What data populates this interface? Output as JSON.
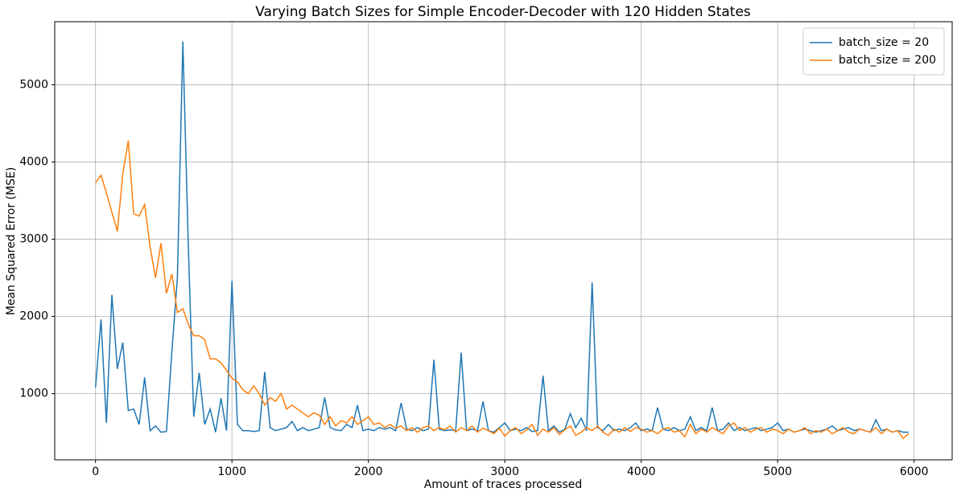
{
  "chart_data": {
    "type": "line",
    "title": "Varying Batch Sizes for Simple Encoder-Decoder with 120 Hidden States",
    "x_label": "Amount of traces processed",
    "y_label": "Mean Squared Error (MSE)",
    "x": [
      0,
      40,
      80,
      120,
      160,
      200,
      240,
      280,
      320,
      360,
      400,
      440,
      480,
      520,
      560,
      600,
      640,
      680,
      720,
      760,
      800,
      840,
      880,
      920,
      960,
      1000,
      1040,
      1080,
      1120,
      1160,
      1200,
      1240,
      1280,
      1320,
      1360,
      1400,
      1440,
      1480,
      1520,
      1560,
      1600,
      1640,
      1680,
      1720,
      1760,
      1800,
      1840,
      1880,
      1920,
      1960,
      2000,
      2040,
      2080,
      2120,
      2160,
      2200,
      2240,
      2280,
      2320,
      2360,
      2400,
      2440,
      2480,
      2520,
      2560,
      2600,
      2640,
      2680,
      2720,
      2760,
      2800,
      2840,
      2880,
      2920,
      2960,
      3000,
      3040,
      3080,
      3120,
      3160,
      3200,
      3240,
      3280,
      3320,
      3360,
      3400,
      3440,
      3480,
      3520,
      3560,
      3600,
      3640,
      3680,
      3720,
      3760,
      3800,
      3840,
      3880,
      3920,
      3960,
      4000,
      4040,
      4080,
      4120,
      4160,
      4200,
      4240,
      4280,
      4320,
      4360,
      4400,
      4440,
      4480,
      4520,
      4560,
      4600,
      4640,
      4680,
      4720,
      4760,
      4800,
      4840,
      4880,
      4920,
      4960,
      5000,
      5040,
      5080,
      5120,
      5160,
      5200,
      5240,
      5280,
      5320,
      5360,
      5400,
      5440,
      5480,
      5520,
      5560,
      5600,
      5640,
      5680,
      5720,
      5760,
      5800,
      5840,
      5880,
      5920,
      5960
    ],
    "series": [
      {
        "name": "batch_size = 20",
        "color": "#1f77b4",
        "values": [
          1080,
          1960,
          620,
          2280,
          1320,
          1660,
          780,
          800,
          600,
          1210,
          520,
          580,
          500,
          510,
          1550,
          2500,
          5560,
          2940,
          700,
          1270,
          600,
          800,
          500,
          940,
          520,
          2460,
          600,
          520,
          520,
          510,
          520,
          1280,
          560,
          520,
          540,
          560,
          640,
          520,
          560,
          520,
          540,
          560,
          950,
          560,
          530,
          520,
          600,
          560,
          850,
          520,
          540,
          520,
          560,
          540,
          560,
          520,
          880,
          540,
          520,
          560,
          520,
          540,
          1440,
          540,
          520,
          530,
          520,
          1530,
          520,
          540,
          520,
          900,
          520,
          500,
          560,
          620,
          520,
          540,
          520,
          560,
          510,
          520,
          1230,
          520,
          580,
          500,
          540,
          740,
          560,
          680,
          520,
          2440,
          560,
          520,
          600,
          520,
          540,
          520,
          560,
          620,
          520,
          540,
          520,
          820,
          540,
          520,
          560,
          520,
          540,
          700,
          520,
          560,
          520,
          820,
          520,
          540,
          620,
          520,
          560,
          520,
          540,
          560,
          520,
          540,
          560,
          620,
          520,
          540,
          500,
          520,
          540,
          520,
          500,
          520,
          540,
          580,
          520,
          540,
          560,
          520,
          540,
          520,
          500,
          660,
          520,
          540,
          500,
          520,
          500,
          500
        ]
      },
      {
        "name": "batch_size = 200",
        "color": "#ff7f0e",
        "values": [
          3730,
          3830,
          3600,
          3350,
          3100,
          3850,
          4280,
          3330,
          3300,
          3450,
          2900,
          2500,
          2950,
          2300,
          2550,
          2050,
          2100,
          1900,
          1750,
          1750,
          1700,
          1450,
          1450,
          1400,
          1300,
          1200,
          1150,
          1050,
          1000,
          1100,
          1000,
          850,
          950,
          900,
          1000,
          800,
          850,
          800,
          750,
          700,
          750,
          720,
          600,
          700,
          580,
          650,
          620,
          700,
          600,
          650,
          700,
          600,
          620,
          560,
          600,
          550,
          580,
          520,
          560,
          500,
          560,
          580,
          520,
          560,
          530,
          580,
          500,
          560,
          520,
          580,
          500,
          550,
          520,
          480,
          550,
          450,
          520,
          560,
          480,
          530,
          600,
          460,
          540,
          500,
          560,
          470,
          530,
          580,
          460,
          500,
          560,
          520,
          580,
          500,
          460,
          540,
          500,
          560,
          510,
          560,
          540,
          500,
          520,
          480,
          540,
          560,
          500,
          520,
          440,
          600,
          480,
          540,
          500,
          560,
          520,
          480,
          580,
          620,
          520,
          560,
          500,
          540,
          560,
          500,
          540,
          520,
          480,
          540,
          500,
          520,
          560,
          480,
          520,
          500,
          540,
          480,
          520,
          560,
          500,
          480,
          540,
          520,
          500,
          560,
          480,
          540,
          500,
          520,
          420,
          480
        ]
      }
    ],
    "xlim": [
      -299,
      6279
    ],
    "ylim": [
      142,
      5818
    ],
    "xticks": [
      0,
      1000,
      2000,
      3000,
      4000,
      5000,
      6000
    ],
    "yticks": [
      1000,
      2000,
      3000,
      4000,
      5000
    ],
    "grid": true,
    "legend": "upper right"
  }
}
